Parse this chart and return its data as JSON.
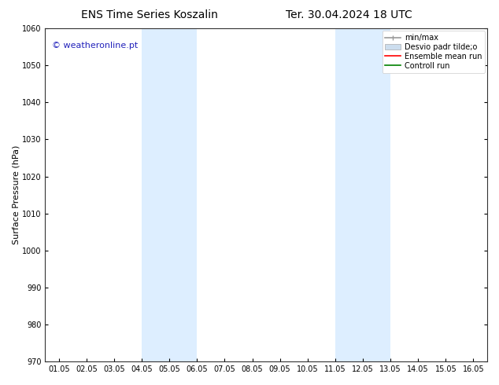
{
  "title_left": "ENS Time Series Koszalin",
  "title_right": "Ter. 30.04.2024 18 UTC",
  "ylabel": "Surface Pressure (hPa)",
  "ylim": [
    970,
    1060
  ],
  "yticks": [
    970,
    980,
    990,
    1000,
    1010,
    1020,
    1030,
    1040,
    1050,
    1060
  ],
  "xtick_labels": [
    "01.05",
    "02.05",
    "03.05",
    "04.05",
    "05.05",
    "06.05",
    "07.05",
    "08.05",
    "09.05",
    "10.05",
    "11.05",
    "12.05",
    "13.05",
    "14.05",
    "15.05",
    "16.05"
  ],
  "xtick_positions": [
    0,
    1,
    2,
    3,
    4,
    5,
    6,
    7,
    8,
    9,
    10,
    11,
    12,
    13,
    14,
    15
  ],
  "xlim_start": -0.5,
  "xlim_end": 15.5,
  "shaded_regions": [
    {
      "x_start": 3,
      "x_end": 5,
      "color": "#ddeeff"
    },
    {
      "x_start": 10,
      "x_end": 12,
      "color": "#ddeeff"
    }
  ],
  "watermark_text": "© weatheronline.pt",
  "watermark_color": "#2222bb",
  "watermark_fontsize": 8,
  "legend_entries": [
    {
      "label": "min/max",
      "color": "#999999"
    },
    {
      "label": "Desvio padr tilde;o",
      "color": "#ccddee"
    },
    {
      "label": "Ensemble mean run",
      "color": "red"
    },
    {
      "label": "Controll run",
      "color": "green"
    }
  ],
  "bg_color": "#ffffff",
  "title_fontsize": 10,
  "axis_label_fontsize": 8,
  "tick_fontsize": 7,
  "legend_fontsize": 7
}
